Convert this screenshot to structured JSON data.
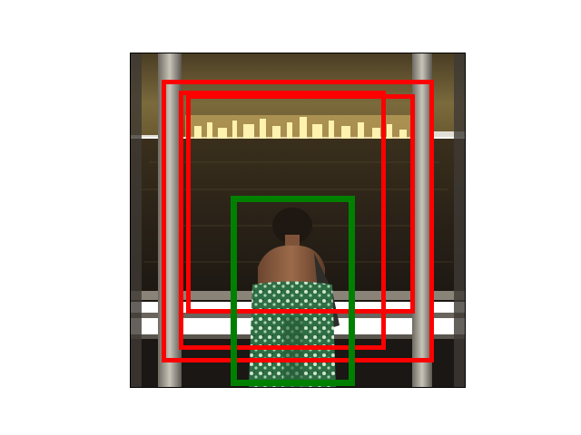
{
  "scene": {
    "subject": "woman-in-green-dress",
    "background": "night-city-skyline-over-water"
  },
  "boxes": [
    {
      "name": "detection-box-red-outer",
      "color": "#ff0000",
      "label": "red"
    },
    {
      "name": "detection-box-red-middle",
      "color": "#ff0000",
      "label": "red"
    },
    {
      "name": "detection-box-red-inner",
      "color": "#ff0000",
      "label": "red"
    },
    {
      "name": "detection-box-green",
      "color": "#008000",
      "label": "green"
    }
  ]
}
